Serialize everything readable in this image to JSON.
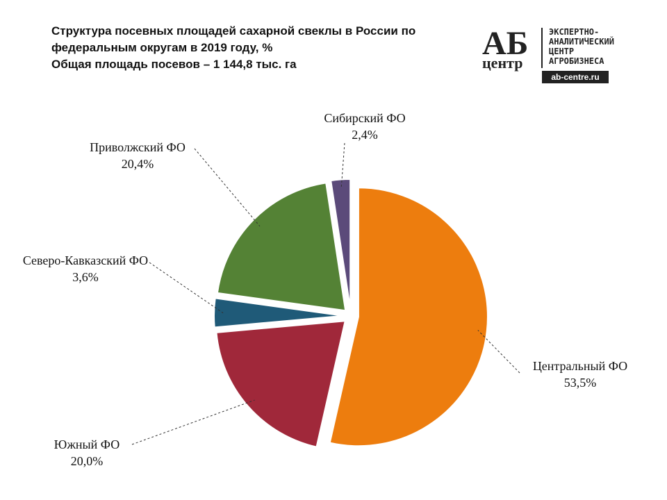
{
  "chart_data": {
    "type": "pie",
    "title": "Структура посевных площадей сахарной свеклы в России по федеральным округам в 2019 году, %",
    "subtitle": "Общая площадь посевов – 1 144,8 тыс. га",
    "categories": [
      "Центральный ФО",
      "Южный ФО",
      "Северо-Кавказский ФО",
      "Приволжский ФО",
      "Сибирский ФО"
    ],
    "values": [
      53.5,
      20.0,
      3.6,
      20.4,
      2.4
    ],
    "value_labels": [
      "53,5%",
      "20,0%",
      "3,6%",
      "20,4%",
      "2,4%"
    ],
    "colors": [
      "#ed7d0e",
      "#a0283a",
      "#1f5a78",
      "#548235",
      "#5b4a7a"
    ]
  },
  "logo": {
    "mark": "АБ",
    "mark_sub": "центр",
    "lines": [
      "ЭКСПЕРТНО-",
      "АНАЛИТИЧЕСКИЙ",
      "ЦЕНТР",
      "АГРОБИЗНЕСА"
    ],
    "url": "ab-centre.ru"
  }
}
